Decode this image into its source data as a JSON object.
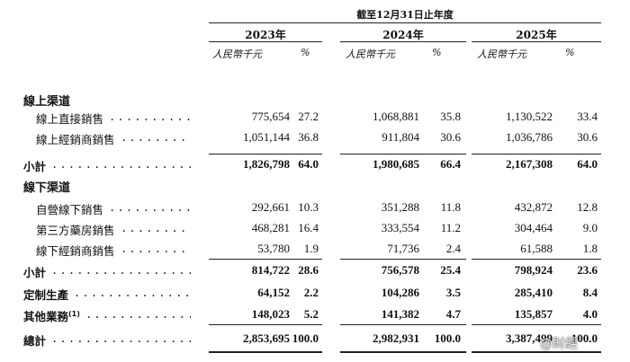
{
  "header": {
    "period": "截至12月31日止年度",
    "years": [
      "2023年",
      "2024年",
      "2025年"
    ],
    "amount_unit": "人民幣千元",
    "pct_unit": "%"
  },
  "sections": {
    "online": "線上渠道",
    "offline": "線下渠道"
  },
  "rows": [
    {
      "label": "線上直接銷售",
      "sup": "",
      "dots": "...............",
      "values": [
        "775,654",
        "27.2",
        "1,068,881",
        "35.8",
        "1,130,522",
        "33.4"
      ],
      "bold": false
    },
    {
      "label": "線上經銷商銷售",
      "sup": "",
      "dots": ".............",
      "values": [
        "1,051,144",
        "36.8",
        "911,804",
        "30.6",
        "1,036,786",
        "30.6"
      ],
      "bold": false
    },
    {
      "label": "小計",
      "sup": "",
      "dots": "......................",
      "values": [
        "1,826,798",
        "64.0",
        "1,980,685",
        "66.4",
        "2,167,308",
        "64.0"
      ],
      "bold": true
    },
    {
      "label": "自營線下銷售",
      "sup": "",
      "dots": "...............",
      "values": [
        "292,661",
        "10.3",
        "351,288",
        "11.8",
        "432,872",
        "12.8"
      ],
      "bold": false
    },
    {
      "label": "第三方藥房銷售",
      "sup": "",
      "dots": ".............",
      "values": [
        "468,281",
        "16.4",
        "333,554",
        "11.2",
        "304,464",
        "9.0"
      ],
      "bold": false
    },
    {
      "label": "線下經銷商銷售",
      "sup": "",
      "dots": ".............",
      "values": [
        "53,780",
        "1.9",
        "71,736",
        "2.4",
        "61,588",
        "1.8"
      ],
      "bold": false
    },
    {
      "label": "小計",
      "sup": "",
      "dots": "......................",
      "values": [
        "814,722",
        "28.6",
        "756,578",
        "25.4",
        "798,924",
        "23.6"
      ],
      "bold": true
    },
    {
      "label": "定制生產",
      "sup": "",
      "dots": "...................",
      "values": [
        "64,152",
        "2.2",
        "104,286",
        "3.5",
        "285,410",
        "8.4"
      ],
      "bold": true
    },
    {
      "label": "其他業務",
      "sup": "(1)",
      "dots": ".................",
      "values": [
        "148,023",
        "5.2",
        "141,382",
        "4.7",
        "135,857",
        "4.0"
      ],
      "bold": true
    },
    {
      "label": "總計",
      "sup": "",
      "dots": "......................",
      "values": [
        "2,853,695",
        "100.0",
        "2,982,931",
        "100.0",
        "3,387,499",
        "100.0"
      ],
      "bold": true
    }
  ],
  "watermark": "@財經"
}
